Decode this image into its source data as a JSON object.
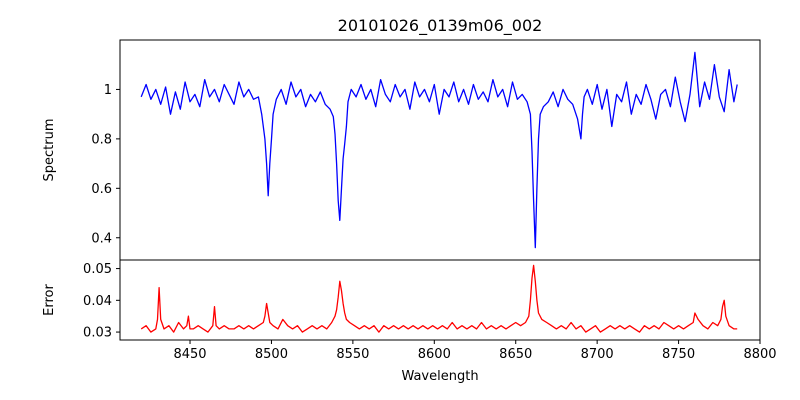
{
  "chart_data": {
    "title": "20101026_0139m06_002",
    "xlabel": "Wavelength",
    "x_ticks": [
      8450,
      8500,
      8550,
      8600,
      8650,
      8700,
      8750,
      8800
    ],
    "xlim": [
      8407,
      8800
    ],
    "type": "line",
    "panels": [
      {
        "name": "spectrum",
        "ylabel": "Spectrum",
        "ylim": [
          0.31,
          1.2
        ],
        "y_ticks": [
          0.4,
          0.6,
          0.8,
          1.0
        ],
        "series": [
          {
            "color": "#0000ff",
            "x": [
              8420,
              8423,
              8426,
              8429,
              8432,
              8435,
              8438,
              8441,
              8444,
              8447,
              8450,
              8453,
              8456,
              8459,
              8462,
              8465,
              8468,
              8471,
              8474,
              8477,
              8480,
              8483,
              8486,
              8489,
              8492,
              8494,
              8496,
              8497,
              8498,
              8499,
              8500,
              8501,
              8503,
              8506,
              8509,
              8512,
              8515,
              8518,
              8521,
              8524,
              8527,
              8530,
              8533,
              8536,
              8538,
              8539,
              8540,
              8541,
              8542,
              8543,
              8544,
              8545,
              8546,
              8547,
              8549,
              8552,
              8555,
              8558,
              8561,
              8564,
              8567,
              8570,
              8573,
              8576,
              8579,
              8582,
              8585,
              8588,
              8591,
              8594,
              8597,
              8600,
              8603,
              8606,
              8609,
              8612,
              8615,
              8618,
              8621,
              8624,
              8627,
              8630,
              8633,
              8636,
              8639,
              8642,
              8645,
              8648,
              8651,
              8654,
              8657,
              8659,
              8660,
              8661,
              8662,
              8663,
              8664,
              8665,
              8667,
              8670,
              8673,
              8676,
              8679,
              8682,
              8685,
              8688,
              8690,
              8691,
              8692,
              8694,
              8697,
              8700,
              8703,
              8706,
              8709,
              8712,
              8715,
              8718,
              8721,
              8724,
              8727,
              8730,
              8733,
              8736,
              8739,
              8742,
              8745,
              8748,
              8751,
              8754,
              8757,
              8760,
              8763,
              8766,
              8769,
              8772,
              8775,
              8778,
              8781,
              8784,
              8786
            ],
            "values": [
              0.97,
              1.02,
              0.96,
              1.0,
              0.94,
              1.01,
              0.9,
              0.99,
              0.92,
              1.03,
              0.95,
              0.98,
              0.93,
              1.04,
              0.97,
              1.0,
              0.95,
              1.02,
              0.98,
              0.94,
              1.03,
              0.97,
              1.0,
              0.96,
              0.97,
              0.9,
              0.8,
              0.7,
              0.57,
              0.7,
              0.8,
              0.9,
              0.96,
              1.0,
              0.94,
              1.03,
              0.97,
              1.0,
              0.93,
              0.98,
              0.95,
              0.99,
              0.94,
              0.92,
              0.89,
              0.82,
              0.7,
              0.55,
              0.47,
              0.6,
              0.72,
              0.78,
              0.85,
              0.95,
              1.0,
              0.97,
              1.02,
              0.96,
              1.0,
              0.93,
              1.04,
              0.98,
              0.95,
              1.02,
              0.97,
              1.0,
              0.92,
              1.03,
              0.97,
              1.0,
              0.95,
              1.02,
              0.9,
              1.0,
              0.97,
              1.03,
              0.95,
              1.0,
              0.94,
              1.02,
              0.96,
              0.99,
              0.95,
              1.04,
              0.97,
              1.0,
              0.93,
              1.03,
              0.96,
              0.98,
              0.95,
              0.9,
              0.75,
              0.55,
              0.36,
              0.6,
              0.8,
              0.9,
              0.93,
              0.95,
              0.99,
              0.93,
              1.0,
              0.96,
              0.94,
              0.88,
              0.8,
              0.9,
              0.97,
              1.0,
              0.94,
              1.02,
              0.92,
              1.0,
              0.85,
              0.98,
              0.95,
              1.03,
              0.9,
              0.98,
              0.94,
              1.02,
              0.96,
              0.88,
              0.98,
              1.0,
              0.93,
              1.05,
              0.95,
              0.87,
              0.98,
              1.15,
              0.93,
              1.03,
              0.96,
              1.1,
              0.97,
              0.91,
              1.08,
              0.95,
              1.02
            ]
          }
        ]
      },
      {
        "name": "error",
        "ylabel": "Error",
        "ylim": [
          0.0275,
          0.0527
        ],
        "y_ticks": [
          0.03,
          0.04,
          0.05
        ],
        "series": [
          {
            "color": "#ff0000",
            "x": [
              8420,
              8423,
              8426,
              8429,
              8430,
              8431,
              8432,
              8434,
              8437,
              8440,
              8443,
              8446,
              8448,
              8449,
              8450,
              8452,
              8455,
              8458,
              8461,
              8464,
              8465,
              8466,
              8468,
              8471,
              8474,
              8477,
              8480,
              8483,
              8486,
              8489,
              8492,
              8495,
              8496,
              8497,
              8498,
              8499,
              8501,
              8504,
              8507,
              8510,
              8513,
              8516,
              8519,
              8522,
              8525,
              8528,
              8531,
              8534,
              8537,
              8539,
              8540,
              8541,
              8542,
              8543,
              8544,
              8545,
              8546,
              8548,
              8551,
              8554,
              8557,
              8560,
              8563,
              8566,
              8569,
              8572,
              8575,
              8578,
              8581,
              8584,
              8587,
              8590,
              8593,
              8596,
              8599,
              8602,
              8605,
              8608,
              8611,
              8614,
              8617,
              8620,
              8623,
              8626,
              8629,
              8632,
              8635,
              8638,
              8641,
              8644,
              8647,
              8650,
              8653,
              8656,
              8658,
              8659,
              8660,
              8661,
              8662,
              8663,
              8664,
              8666,
              8669,
              8672,
              8675,
              8678,
              8681,
              8684,
              8687,
              8690,
              8693,
              8696,
              8699,
              8702,
              8705,
              8708,
              8711,
              8714,
              8717,
              8720,
              8723,
              8726,
              8729,
              8732,
              8735,
              8738,
              8741,
              8744,
              8747,
              8750,
              8753,
              8756,
              8759,
              8760,
              8762,
              8765,
              8768,
              8771,
              8774,
              8776,
              8777,
              8778,
              8779,
              8781,
              8784,
              8786
            ],
            "values": [
              0.031,
              0.032,
              0.03,
              0.031,
              0.034,
              0.044,
              0.034,
              0.031,
              0.032,
              0.03,
              0.033,
              0.031,
              0.032,
              0.035,
              0.031,
              0.031,
              0.032,
              0.031,
              0.03,
              0.032,
              0.038,
              0.032,
              0.031,
              0.032,
              0.031,
              0.031,
              0.032,
              0.031,
              0.032,
              0.031,
              0.032,
              0.033,
              0.035,
              0.039,
              0.036,
              0.033,
              0.032,
              0.031,
              0.034,
              0.032,
              0.031,
              0.032,
              0.03,
              0.031,
              0.032,
              0.031,
              0.032,
              0.031,
              0.033,
              0.035,
              0.037,
              0.041,
              0.046,
              0.043,
              0.039,
              0.036,
              0.034,
              0.033,
              0.032,
              0.031,
              0.032,
              0.031,
              0.032,
              0.03,
              0.032,
              0.031,
              0.032,
              0.031,
              0.032,
              0.031,
              0.032,
              0.031,
              0.032,
              0.031,
              0.032,
              0.031,
              0.032,
              0.031,
              0.033,
              0.031,
              0.032,
              0.031,
              0.032,
              0.031,
              0.033,
              0.031,
              0.032,
              0.031,
              0.032,
              0.031,
              0.032,
              0.033,
              0.032,
              0.033,
              0.035,
              0.04,
              0.047,
              0.051,
              0.046,
              0.04,
              0.036,
              0.034,
              0.033,
              0.032,
              0.031,
              0.032,
              0.031,
              0.033,
              0.031,
              0.032,
              0.03,
              0.031,
              0.032,
              0.03,
              0.031,
              0.032,
              0.031,
              0.032,
              0.031,
              0.032,
              0.031,
              0.03,
              0.032,
              0.031,
              0.032,
              0.031,
              0.033,
              0.032,
              0.031,
              0.032,
              0.031,
              0.032,
              0.033,
              0.036,
              0.034,
              0.032,
              0.031,
              0.033,
              0.032,
              0.034,
              0.038,
              0.04,
              0.035,
              0.032,
              0.031,
              0.031
            ]
          }
        ]
      }
    ]
  }
}
